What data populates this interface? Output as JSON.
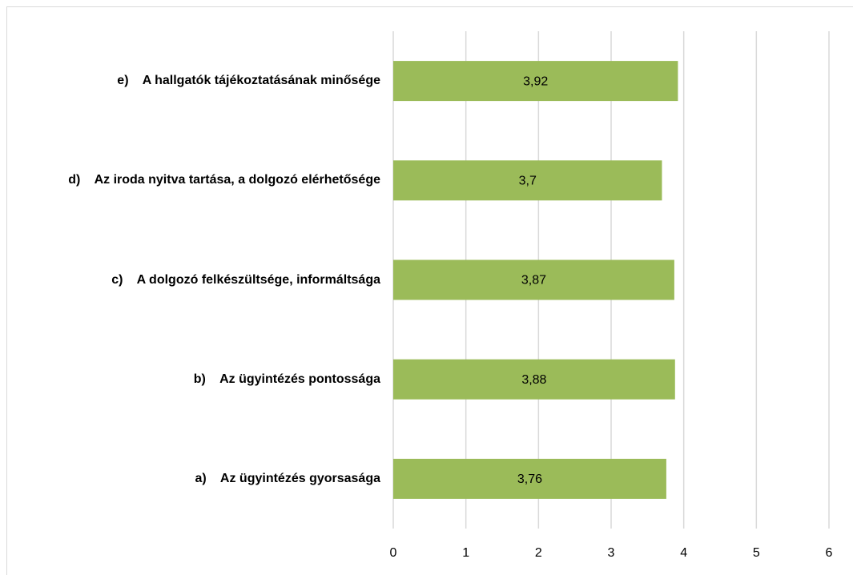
{
  "chart_data": {
    "type": "bar",
    "orientation": "horizontal",
    "categories": [
      "a)    Az ügyintézés gyorsasága",
      "b)    Az ügyintézés pontossága",
      "c)    A dolgozó felkészültsége, informáltsága",
      "d)    Az iroda nyitva tartása, a dolgozó elérhetősége",
      "e)    A hallgatók tájékoztatásának minősége"
    ],
    "values": [
      3.76,
      3.88,
      3.87,
      3.7,
      3.92
    ],
    "value_labels": [
      "3,76",
      "3,88",
      "3,87",
      "3,7",
      "3,92"
    ],
    "color": "#9bbb59",
    "xlim": [
      0,
      6
    ],
    "xticks": [
      0,
      1,
      2,
      3,
      4,
      5,
      6
    ],
    "grid": true
  }
}
